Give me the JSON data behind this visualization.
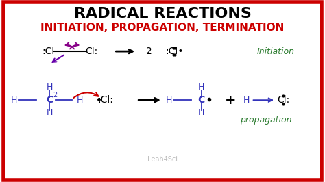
{
  "title": "RADICAL REACTIONS",
  "subtitle": "INITIATION, PROPAGATION, TERMINATION",
  "title_color": "#000000",
  "subtitle_color": "#cc0000",
  "background_color": "#ffffff",
  "border_color": "#cc0000",
  "watermark": "Leah4Sci",
  "initiation_label": "Initiation",
  "propagation_label": "propagation",
  "label_color": "#2e7d32"
}
